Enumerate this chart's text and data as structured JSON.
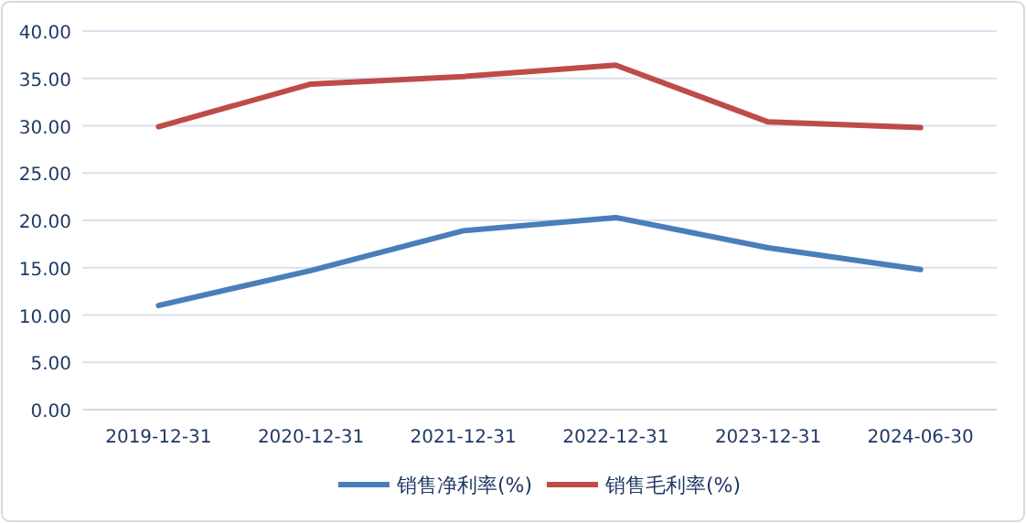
{
  "chart_data": {
    "type": "line",
    "categories": [
      "2019-12-31",
      "2020-12-31",
      "2021-12-31",
      "2022-12-31",
      "2023-12-31",
      "2024-06-30"
    ],
    "series": [
      {
        "name": "销售净利率(%)",
        "color": "#4a7ebb",
        "values": [
          11.0,
          14.7,
          18.9,
          20.3,
          17.1,
          14.8
        ]
      },
      {
        "name": "销售毛利率(%)",
        "color": "#be4b48",
        "values": [
          29.9,
          34.4,
          35.2,
          36.4,
          30.4,
          29.8
        ]
      }
    ],
    "ylim": [
      0,
      40
    ],
    "yticks": [
      {
        "value": 0,
        "label": "0.00"
      },
      {
        "value": 5,
        "label": "5.00"
      },
      {
        "value": 10,
        "label": "10.00"
      },
      {
        "value": 15,
        "label": "15.00"
      },
      {
        "value": 20,
        "label": "20.00"
      },
      {
        "value": 25,
        "label": "25.00"
      },
      {
        "value": 30,
        "label": "30.00"
      },
      {
        "value": 35,
        "label": "35.00"
      },
      {
        "value": 40,
        "label": "40.00"
      }
    ],
    "grid": "y",
    "legend": "bottom"
  }
}
